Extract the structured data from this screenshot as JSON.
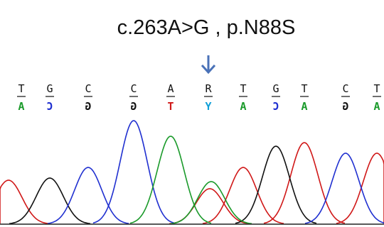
{
  "title": "c.263A>G , p.N88S",
  "bases": {
    "top": [
      "T",
      "G",
      "C",
      "C",
      "A",
      "R",
      "T",
      "G",
      "T",
      "C",
      "T"
    ],
    "bottom": [
      "A",
      "C",
      "G",
      "G",
      "T",
      "Y",
      "A",
      "C",
      "A",
      "G",
      "A"
    ]
  }
}
